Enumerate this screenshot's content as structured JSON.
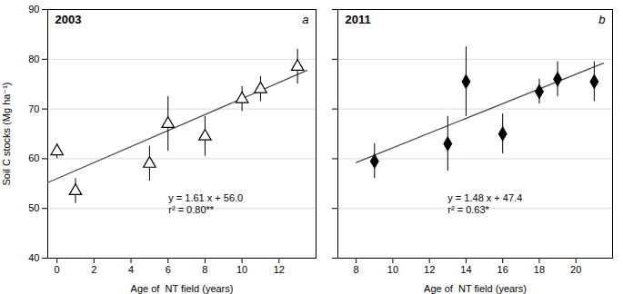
{
  "chart_data": [
    {
      "type": "scatter",
      "title": "2003",
      "annotations": [
        "a",
        "y = 1.61 x + 56.0\nr² = 0.80**"
      ],
      "xlabel": "Age of  NT field (years)",
      "ylabel": "Soil C stocks (Mg ha⁻¹)",
      "xlim": [
        -0.5,
        14
      ],
      "xticks": [
        0,
        2,
        4,
        6,
        8,
        10,
        12
      ],
      "ylim": [
        40,
        90
      ],
      "yticks": [
        40,
        50,
        60,
        70,
        80,
        90
      ],
      "grid": "y",
      "series": [
        {
          "type": "scatter",
          "marker": "triangle",
          "color": "#000000",
          "x": [
            0,
            1,
            5,
            6,
            8,
            10,
            11,
            13
          ],
          "values": [
            61.5,
            53.5,
            59.0,
            67.0,
            64.5,
            72.0,
            74.0,
            78.5
          ],
          "yerr": [
            1.5,
            2.5,
            3.5,
            5.5,
            4.0,
            2.5,
            2.5,
            3.5
          ]
        },
        {
          "type": "line",
          "color": "#4a4a4a",
          "x": [
            -0.5,
            13.5
          ],
          "values": [
            55.195,
            77.735
          ]
        }
      ]
    },
    {
      "type": "scatter",
      "title": "2011",
      "annotations": [
        "b",
        "y = 1.48 x + 47.4\nr² = 0.63*"
      ],
      "xlabel": "Age of  NT field (years)",
      "xlim": [
        7,
        22
      ],
      "xticks": [
        8,
        10,
        12,
        14,
        16,
        18,
        20
      ],
      "ylim": [
        40,
        90
      ],
      "yticks": [
        40,
        50,
        60,
        70,
        80,
        90
      ],
      "grid": "y",
      "tick_labels": "x",
      "series": [
        {
          "type": "scatter",
          "marker": "diamond",
          "color": "#000000",
          "x": [
            9,
            13,
            14,
            16,
            18,
            19,
            21
          ],
          "values": [
            59.5,
            63.0,
            75.5,
            65.0,
            73.5,
            76.0,
            75.5
          ],
          "yerr": [
            3.5,
            5.5,
            7.0,
            4.0,
            2.5,
            3.5,
            4.0
          ]
        },
        {
          "type": "line",
          "color": "#4a4a4a",
          "x": [
            8.0,
            21.5
          ],
          "values": [
            59.24,
            79.22
          ]
        }
      ]
    }
  ]
}
